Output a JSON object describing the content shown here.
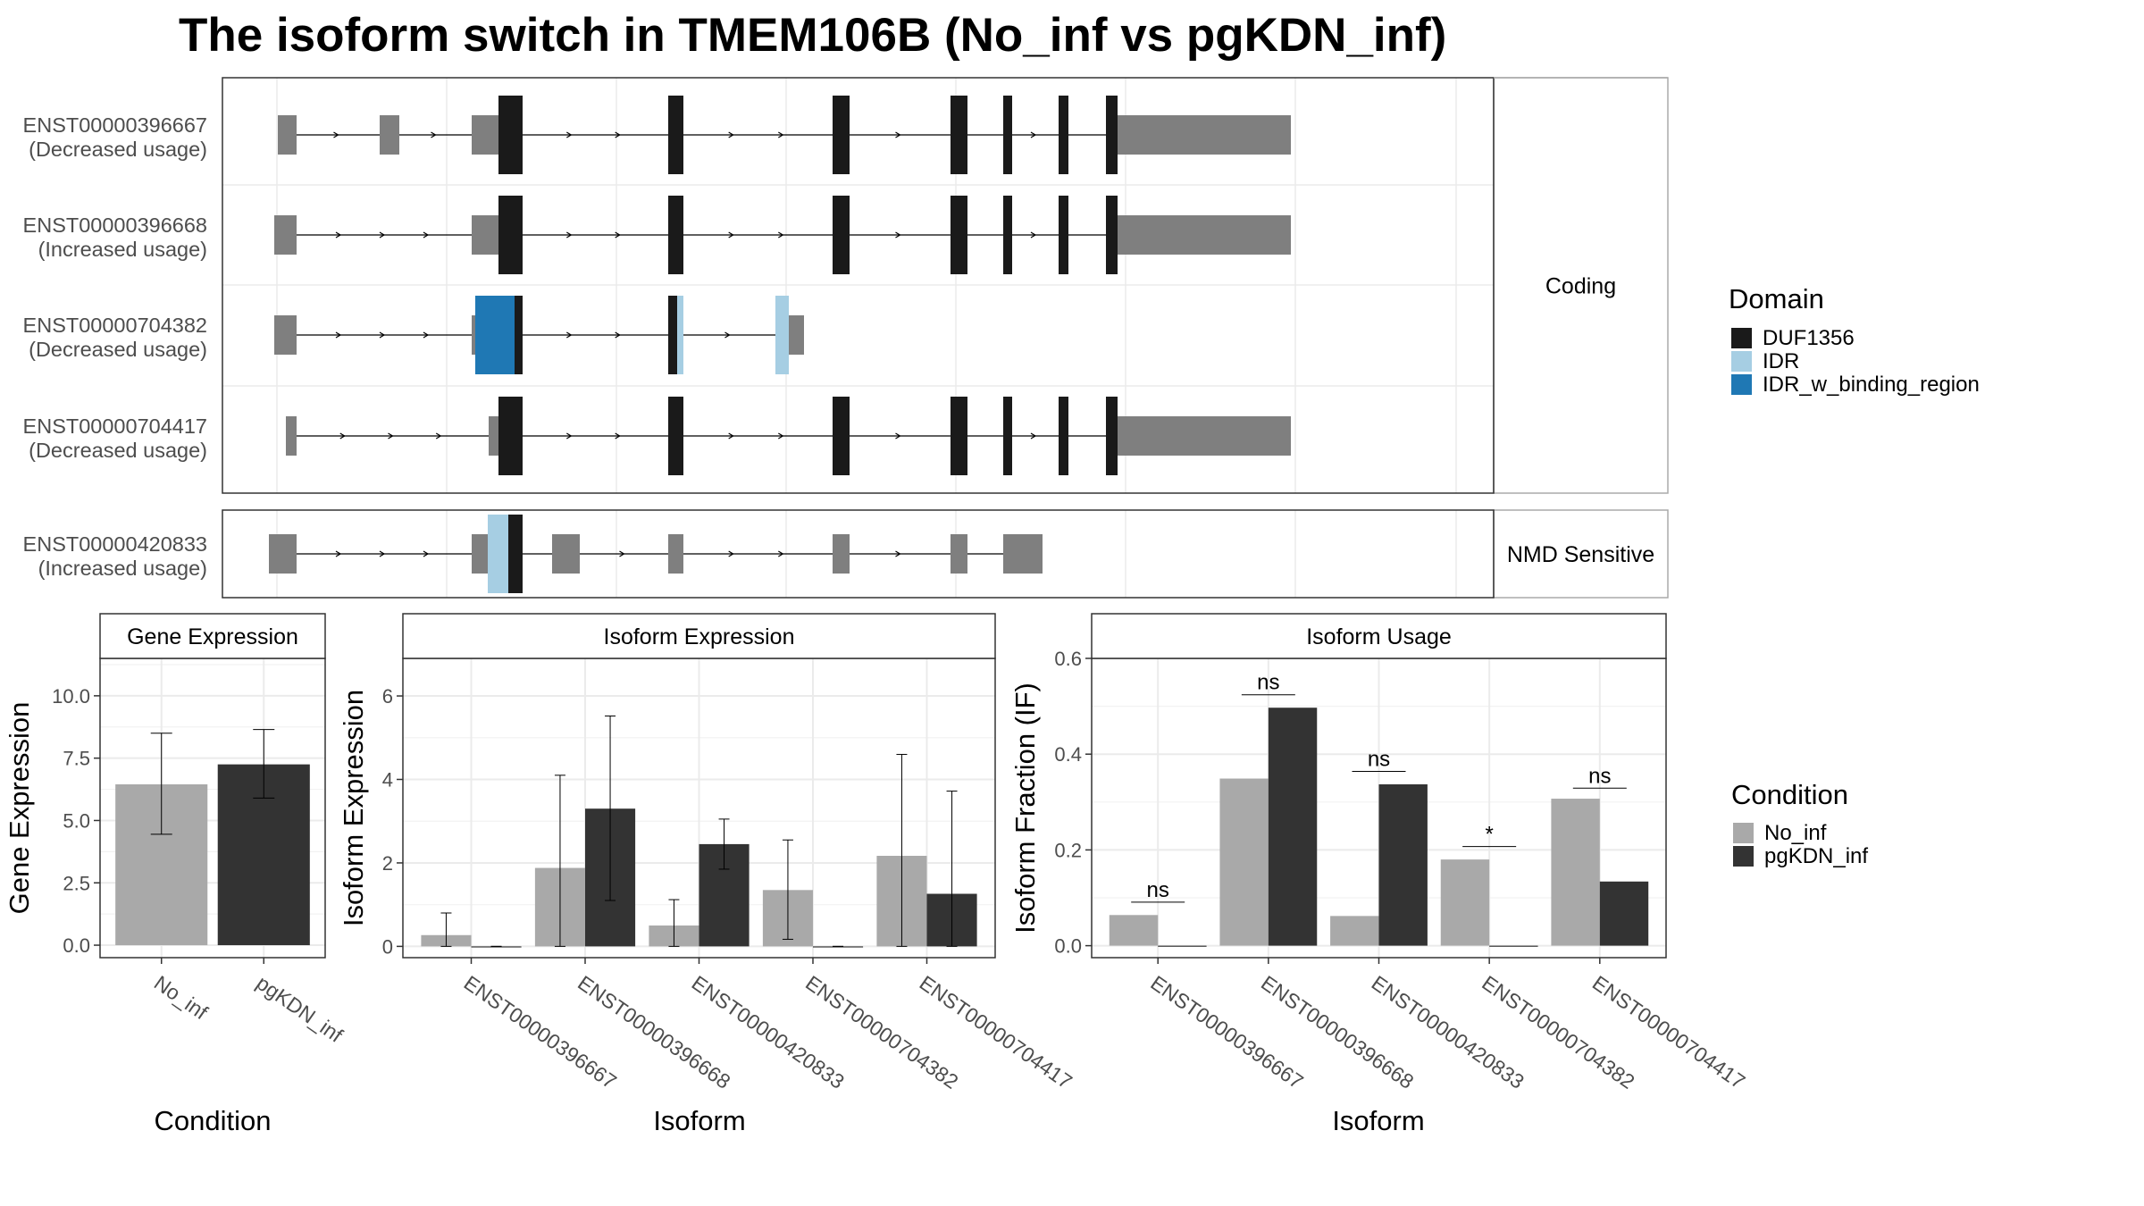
{
  "title": "The isoform switch in TMEM106B (No_inf vs pgKDN_inf)",
  "colors": {
    "DUF1356": "#1a1a1a",
    "IDR": "#a6cee3",
    "IDR_w_binding_region": "#1f78b4",
    "utr": "#7f7f7f",
    "No_inf": "#a9a9a9",
    "pgKDN_inf": "#333333"
  },
  "structure": {
    "facets": [
      "Coding",
      "NMD Sensitive"
    ],
    "tracks": [
      {
        "name": "ENST00000396667",
        "usage": "(Decreased usage)",
        "facet": "Coding",
        "segs": [
          [
            1,
            22,
            "u"
          ],
          [
            115,
            137,
            "u"
          ],
          [
            218,
            248,
            "u"
          ],
          [
            248,
            275,
            "d"
          ],
          [
            438,
            455,
            "d"
          ],
          [
            622,
            641,
            "d"
          ],
          [
            754,
            773,
            "d"
          ],
          [
            813,
            823,
            "d"
          ],
          [
            875,
            886,
            "d"
          ],
          [
            928,
            941,
            "d"
          ],
          [
            941,
            951,
            "u"
          ],
          [
            951,
            1135,
            "u"
          ]
        ]
      },
      {
        "name": "ENST00000396668",
        "usage": "(Increased usage)",
        "facet": "Coding",
        "segs": [
          [
            -3,
            22,
            "u"
          ],
          [
            218,
            248,
            "u"
          ],
          [
            248,
            275,
            "d"
          ],
          [
            438,
            455,
            "d"
          ],
          [
            622,
            641,
            "d"
          ],
          [
            754,
            773,
            "d"
          ],
          [
            813,
            823,
            "d"
          ],
          [
            875,
            886,
            "d"
          ],
          [
            928,
            941,
            "d"
          ],
          [
            941,
            951,
            "u"
          ],
          [
            951,
            1135,
            "u"
          ]
        ]
      },
      {
        "name": "ENST00000704382",
        "usage": "(Decreased usage)",
        "facet": "Coding",
        "segs": [
          [
            -3,
            22,
            "u"
          ],
          [
            218,
            222,
            "u"
          ],
          [
            222,
            266,
            "b"
          ],
          [
            266,
            275,
            "d"
          ],
          [
            438,
            448,
            "d"
          ],
          [
            448,
            455,
            "i"
          ],
          [
            558,
            573,
            "i"
          ],
          [
            573,
            578,
            "u"
          ],
          [
            578,
            590,
            "u"
          ]
        ]
      },
      {
        "name": "ENST00000704417",
        "usage": "(Decreased usage)",
        "facet": "Coding",
        "segs": [
          [
            10,
            22,
            "u"
          ],
          [
            237,
            250,
            "u"
          ],
          [
            248,
            275,
            "d"
          ],
          [
            438,
            455,
            "d"
          ],
          [
            622,
            641,
            "d"
          ],
          [
            754,
            773,
            "d"
          ],
          [
            813,
            823,
            "d"
          ],
          [
            875,
            886,
            "d"
          ],
          [
            928,
            941,
            "d"
          ],
          [
            941,
            951,
            "u"
          ],
          [
            951,
            1135,
            "u"
          ]
        ]
      },
      {
        "name": "ENST00000420833",
        "usage": "(Increased usage)",
        "facet": "NMD Sensitive",
        "segs": [
          [
            -9,
            22,
            "u"
          ],
          [
            218,
            236,
            "u"
          ],
          [
            236,
            259,
            "i"
          ],
          [
            259,
            275,
            "d"
          ],
          [
            308,
            323,
            "u"
          ],
          [
            323,
            339,
            "u"
          ],
          [
            438,
            455,
            "u"
          ],
          [
            622,
            641,
            "u"
          ],
          [
            754,
            773,
            "u"
          ],
          [
            813,
            857,
            "u"
          ]
        ]
      }
    ]
  },
  "domain_legend": {
    "title": "Domain",
    "items": [
      "DUF1356",
      "IDR",
      "IDR_w_binding_region"
    ]
  },
  "condition_legend": {
    "title": "Condition",
    "items": [
      "No_inf",
      "pgKDN_inf"
    ]
  },
  "chart_data": [
    {
      "type": "bar",
      "title": "Gene Expression",
      "xlabel": "Condition",
      "ylabel": "Gene Expression",
      "categories": [
        "No_inf",
        "pgKDN_inf"
      ],
      "ylim": [
        -0.5,
        11.5
      ],
      "yticks": [
        "0.0",
        "2.5",
        "5.0",
        "7.5",
        "10.0"
      ],
      "series": [
        {
          "name": "No_inf",
          "values": [
            6.45,
            null
          ],
          "err_low": [
            4.45,
            null
          ],
          "err_high": [
            8.5,
            null
          ]
        },
        {
          "name": "pgKDN_inf",
          "values": [
            null,
            7.25
          ],
          "err_low": [
            null,
            5.9
          ],
          "err_high": [
            null,
            8.65
          ]
        }
      ]
    },
    {
      "type": "bar",
      "title": "Isoform Expression",
      "xlabel": "Isoform",
      "ylabel": "Isoform Expression",
      "categories": [
        "ENST00000396667",
        "ENST00000396668",
        "ENST00000420833",
        "ENST00000704382",
        "ENST00000704417"
      ],
      "ylim": [
        -0.27,
        6.9
      ],
      "yticks": [
        "0",
        "2",
        "4",
        "6"
      ],
      "series": [
        {
          "name": "No_inf",
          "values": [
            0.27,
            1.88,
            0.5,
            1.35,
            2.17
          ],
          "err_low": [
            0.0,
            0.0,
            0.0,
            0.17,
            0.0
          ],
          "err_high": [
            0.8,
            4.1,
            1.12,
            2.55,
            4.6
          ]
        },
        {
          "name": "pgKDN_inf",
          "values": [
            0.0,
            3.3,
            2.45,
            0.0,
            1.26
          ],
          "err_low": [
            0.0,
            1.1,
            1.85,
            0.0,
            0.0
          ],
          "err_high": [
            0.0,
            5.52,
            3.05,
            0.0,
            3.72
          ]
        }
      ]
    },
    {
      "type": "bar",
      "title": "Isoform Usage",
      "xlabel": "Isoform",
      "ylabel": "Isoform Fraction (IF)",
      "categories": [
        "ENST00000396667",
        "ENST00000396668",
        "ENST00000420833",
        "ENST00000704382",
        "ENST00000704417"
      ],
      "ylim": [
        -0.025,
        0.6
      ],
      "yticks": [
        "0.0",
        "0.2",
        "0.4",
        "0.6"
      ],
      "series": [
        {
          "name": "No_inf",
          "values": [
            0.064,
            0.349,
            0.062,
            0.18,
            0.307
          ]
        },
        {
          "name": "pgKDN_inf",
          "values": [
            0.0,
            0.497,
            0.337,
            0.0,
            0.134
          ]
        }
      ],
      "significance": [
        {
          "label": "ns",
          "y": 0.091
        },
        {
          "label": "ns",
          "y": 0.524
        },
        {
          "label": "ns",
          "y": 0.364
        },
        {
          "label": "*",
          "y": 0.207
        },
        {
          "label": "ns",
          "y": 0.329
        }
      ]
    }
  ]
}
